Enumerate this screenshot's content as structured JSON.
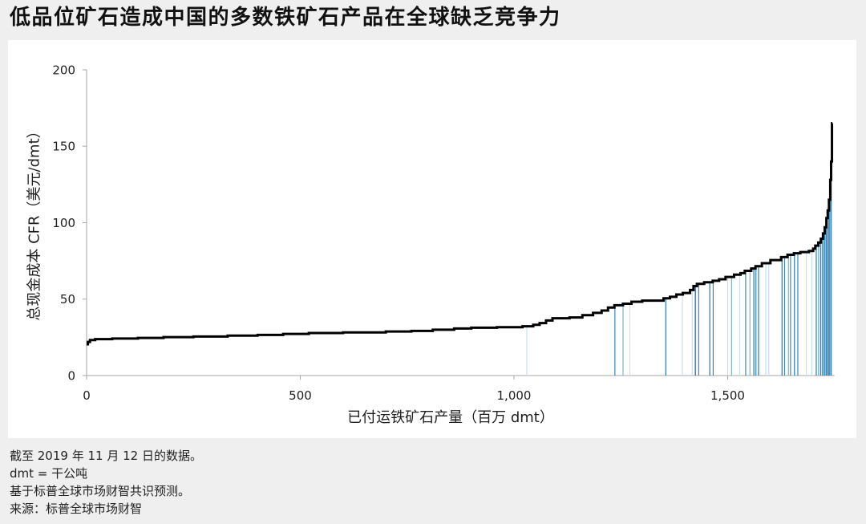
{
  "chart_data": {
    "type": "line",
    "step": true,
    "title": "低品位矿石造成中国的多数铁矿石产品在全球缺乏竞争力",
    "xlabel": "已付运铁矿石产量（百万 dmt）",
    "ylabel": "总现金成本 CFR（美元/dmt）",
    "xlim": [
      0,
      1750
    ],
    "ylim": [
      0,
      200
    ],
    "grid": false,
    "x_ticks": [
      0,
      500,
      1000,
      1500
    ],
    "x_tick_labels": [
      "0",
      "500",
      "1,000",
      "1,500"
    ],
    "y_ticks": [
      0,
      50,
      100,
      150,
      200
    ],
    "y_tick_labels": [
      "0",
      "50",
      "100",
      "150",
      "200"
    ],
    "curve": {
      "color": "#000000",
      "x": [
        0,
        3,
        8,
        20,
        60,
        120,
        180,
        250,
        330,
        400,
        460,
        520,
        600,
        700,
        760,
        810,
        860,
        900,
        960,
        1020,
        1045,
        1060,
        1075,
        1090,
        1130,
        1160,
        1185,
        1205,
        1220,
        1235,
        1255,
        1275,
        1300,
        1350,
        1365,
        1380,
        1395,
        1412,
        1420,
        1428,
        1445,
        1465,
        1480,
        1495,
        1515,
        1530,
        1540,
        1555,
        1565,
        1580,
        1600,
        1625,
        1640,
        1655,
        1670,
        1690,
        1700,
        1705,
        1712,
        1718,
        1723,
        1727,
        1731,
        1734,
        1737,
        1740,
        1742,
        1744,
        1745
      ],
      "y": [
        20.5,
        22,
        23.2,
        23.8,
        24.2,
        24.6,
        25.1,
        25.5,
        26.1,
        26.6,
        27.2,
        27.8,
        28.2,
        28.8,
        29.2,
        30,
        30.8,
        31.3,
        31.6,
        32.2,
        33.2,
        34.3,
        36,
        37.5,
        38,
        39.5,
        41,
        42.5,
        44.5,
        46,
        47,
        48.3,
        49,
        50.5,
        51.5,
        53,
        54,
        56,
        58.5,
        60,
        61,
        62,
        63,
        64.5,
        66,
        67,
        68.5,
        70,
        71.5,
        73.5,
        75.5,
        77.5,
        79,
        80,
        80.8,
        81.5,
        83,
        85,
        87,
        89.5,
        93,
        97,
        103,
        108,
        115,
        128,
        140,
        165,
        165
      ]
    },
    "highlights": [
      {
        "x": 1029,
        "w": 1.5,
        "color": "#c9deee"
      },
      {
        "x": 1235,
        "w": 2,
        "color": "#3a86ba"
      },
      {
        "x": 1254,
        "w": 2,
        "color": "#7eb1d4"
      },
      {
        "x": 1270,
        "w": 1.5,
        "color": "#c9deee"
      },
      {
        "x": 1354,
        "w": 2.5,
        "color": "#3a86ba"
      },
      {
        "x": 1393,
        "w": 1.5,
        "color": "#c9deee"
      },
      {
        "x": 1416,
        "w": 1.5,
        "color": "#c9deee"
      },
      {
        "x": 1423,
        "w": 3,
        "color": "#3a86ba"
      },
      {
        "x": 1431,
        "w": 2,
        "color": "#3a86ba"
      },
      {
        "x": 1457,
        "w": 2.5,
        "color": "#3a86ba"
      },
      {
        "x": 1465,
        "w": 2,
        "color": "#3a86ba"
      },
      {
        "x": 1499,
        "w": 1.5,
        "color": "#c9deee"
      },
      {
        "x": 1508,
        "w": 1.5,
        "color": "#7eb1d4"
      },
      {
        "x": 1527,
        "w": 1.5,
        "color": "#c9deee"
      },
      {
        "x": 1541,
        "w": 2,
        "color": "#3a86ba"
      },
      {
        "x": 1551,
        "w": 1.5,
        "color": "#7eb1d4"
      },
      {
        "x": 1560,
        "w": 2.5,
        "color": "#3a86ba"
      },
      {
        "x": 1565,
        "w": 2,
        "color": "#3a86ba"
      },
      {
        "x": 1571,
        "w": 2.5,
        "color": "#3a86ba"
      },
      {
        "x": 1588,
        "w": 1.5,
        "color": "#c9deee"
      },
      {
        "x": 1595,
        "w": 1.5,
        "color": "#c9deee"
      },
      {
        "x": 1626,
        "w": 2.5,
        "color": "#3a86ba"
      },
      {
        "x": 1632,
        "w": 2,
        "color": "#3a86ba"
      },
      {
        "x": 1641,
        "w": 2,
        "color": "#7eb1d4"
      },
      {
        "x": 1646,
        "w": 2,
        "color": "#3a86ba"
      },
      {
        "x": 1655,
        "w": 2.5,
        "color": "#3a86ba"
      },
      {
        "x": 1663,
        "w": 2,
        "color": "#3a86ba"
      },
      {
        "x": 1683,
        "w": 1.5,
        "color": "#c9deee"
      },
      {
        "x": 1696,
        "w": 1.5,
        "color": "#c9deee"
      },
      {
        "x": 1706,
        "w": 2.5,
        "color": "#3a86ba"
      },
      {
        "x": 1711,
        "w": 2,
        "color": "#7eb1d4"
      },
      {
        "x": 1716,
        "w": 3,
        "color": "#3a86ba"
      },
      {
        "x": 1721,
        "w": 3.5,
        "color": "#3a86ba"
      },
      {
        "x": 1726,
        "w": 3,
        "color": "#3a86ba"
      },
      {
        "x": 1730,
        "w": 4,
        "color": "#3a86ba"
      },
      {
        "x": 1735,
        "w": 4,
        "color": "#3a86ba"
      },
      {
        "x": 1740,
        "w": 3.5,
        "color": "#3a86ba"
      }
    ]
  },
  "footnotes": [
    "截至 2019 年 11 月 12 日的数据。",
    "dmt = 干公吨",
    "基于标普全球市场财智共识预测。",
    "来源：标普全球市场财智"
  ]
}
